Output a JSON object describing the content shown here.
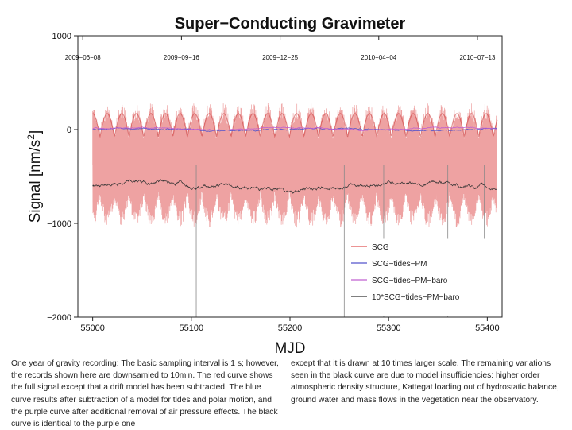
{
  "chart_data": {
    "type": "line",
    "title": "Super−Conducting Gravimeter",
    "xlabel": "MJD",
    "ylabel_main": "Signal [nm/s",
    "ylabel_sup": "2",
    "ylabel_close": "]",
    "xlim": [
      54985,
      55415
    ],
    "ylim": [
      -2000,
      1000
    ],
    "xticks": [
      55000,
      55100,
      55200,
      55300,
      55400
    ],
    "xtick_labels": [
      "55000",
      "55100",
      "55200",
      "55300",
      "55400"
    ],
    "yticks": [
      1000,
      0,
      -1000,
      -2000
    ],
    "ytick_labels": [
      "1000",
      "0",
      "−1000",
      "−2000"
    ],
    "date_ticks": [
      {
        "x": 54990,
        "label": "2009−06−08"
      },
      {
        "x": 55090,
        "label": "2009−09−16"
      },
      {
        "x": 55190,
        "label": "2009−12−25"
      },
      {
        "x": 55290,
        "label": "2010−04−04"
      },
      {
        "x": 55390,
        "label": "2010−07−13"
      }
    ],
    "grid": false,
    "legend_position": "bottom-right",
    "series": [
      {
        "name": "SCG",
        "color": "#e05555",
        "mean": -380,
        "amplitude": 550
      },
      {
        "name": "SCG−tides−PM",
        "color": "#5555cc",
        "mean": 0,
        "amplitude": 30
      },
      {
        "name": "SCG−tides−PM−baro",
        "color": "#c060d0",
        "mean": 10,
        "amplitude": 25
      },
      {
        "name": "10*SCG−tides−PM−baro",
        "color": "#333333",
        "mean": -600,
        "amplitude": 120
      }
    ],
    "spikes": [
      {
        "x": 55053,
        "low": -2000
      },
      {
        "x": 55105,
        "low": -2000
      },
      {
        "x": 55255,
        "low": -2000
      },
      {
        "x": 55295,
        "low": -2000
      },
      {
        "x": 55360,
        "low": -2000
      },
      {
        "x": 55397,
        "low": -1650
      }
    ]
  },
  "caption": {
    "left": "One year of gravity recording: The basic sampling interval is 1 s; however, the records shown here are downsamled to 10min. The red curve shows the full signal except that a drift model has been subtracted. The blue curve results after subtraction of a model for tides and polar motion, and the purple curve after additional removal of air pressure effects. The black curve is identical to the purple one",
    "right": "except that it is drawn at 10 times larger scale. The remaining variations seen in the black curve are due to model insufficiencies: higher order atmospheric density structure, Kattegat loading out of hydrostatic balance, ground water and mass flows in the vegetation near the observatory."
  }
}
